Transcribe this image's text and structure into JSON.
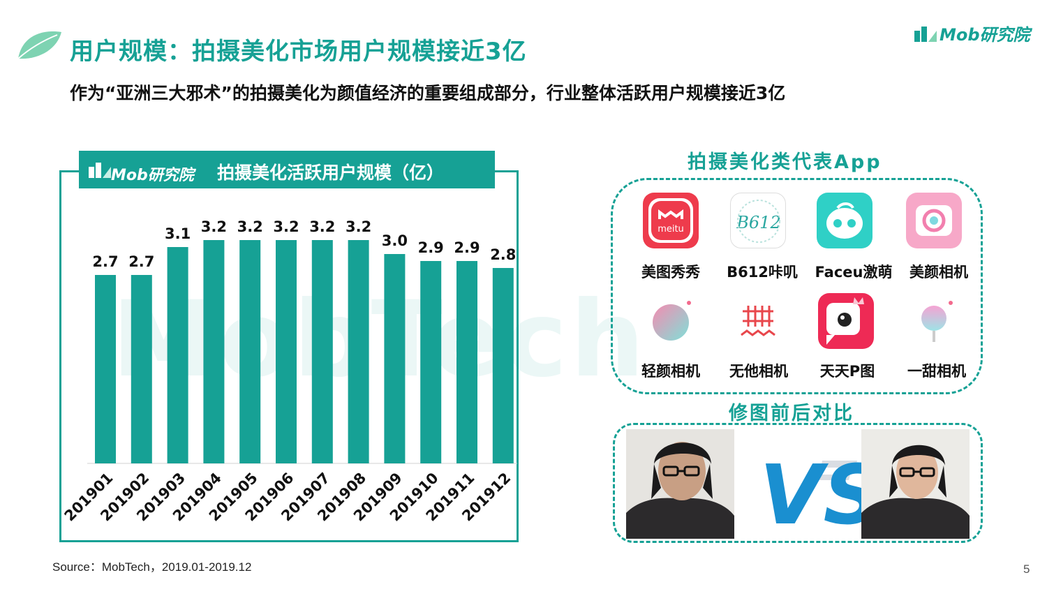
{
  "header": {
    "title": "用户规模：拍摄美化市场用户规模接近3亿",
    "subtitle": "作为“亚洲三大邪术”的拍摄美化为颜值经济的重要组成部分，行业整体活跃用户规模接近3亿",
    "logo_text": "Mob研究院"
  },
  "chart_panel": {
    "logo_text": "Mob研究院",
    "title": "拍摄美化活跃用户规模（亿）"
  },
  "chart_data": {
    "type": "bar",
    "title": "拍摄美化活跃用户规模（亿）",
    "xlabel": "",
    "ylabel": "",
    "categories": [
      "201901",
      "201902",
      "201903",
      "201904",
      "201905",
      "201906",
      "201907",
      "201908",
      "201909",
      "201910",
      "201911",
      "201912"
    ],
    "values": [
      2.7,
      2.7,
      3.1,
      3.2,
      3.2,
      3.2,
      3.2,
      3.2,
      3.0,
      2.9,
      2.9,
      2.8
    ],
    "data_labels": [
      "2.7",
      "2.7",
      "3.1",
      "3.2",
      "3.2",
      "3.2",
      "3.2",
      "3.2",
      "3.0",
      "2.9",
      "2.9",
      "2.8"
    ],
    "ylim": [
      0,
      3.6
    ],
    "grid": false,
    "legend": "none",
    "bar_color": "#16a195"
  },
  "watermark": {
    "text": "MobTech"
  },
  "apps_section": {
    "title": "拍摄美化类代表App",
    "apps": [
      {
        "name": "美图秀秀",
        "icon": "meitu-icon"
      },
      {
        "name": "B612咔叽",
        "icon": "b612-icon"
      },
      {
        "name": "Faceu激萌",
        "icon": "faceu-icon"
      },
      {
        "name": "美颜相机",
        "icon": "beauty-camera-icon"
      },
      {
        "name": "轻颜相机",
        "icon": "qingyan-icon"
      },
      {
        "name": "无他相机",
        "icon": "wuta-icon"
      },
      {
        "name": "天天P图",
        "icon": "tiantian-ptu-icon"
      },
      {
        "name": "一甜相机",
        "icon": "yitian-icon"
      }
    ]
  },
  "compare_section": {
    "title": "修图前后对比",
    "vs_text": "VS"
  },
  "footer": {
    "source": "Source：MobTech，2019.01-2019.12",
    "page_number": "5"
  },
  "colors": {
    "accent": "#16a195",
    "vs_blue": "#1a8fd0"
  }
}
